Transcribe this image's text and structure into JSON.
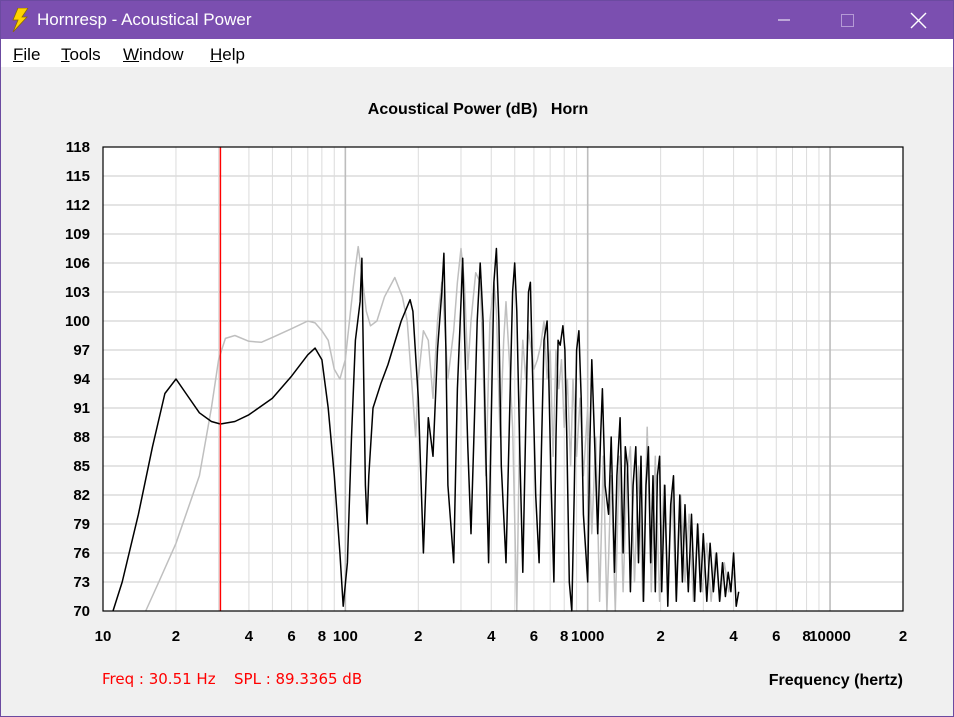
{
  "window": {
    "title": "Hornresp - Acoustical Power",
    "icon": "lightning-bolt-icon",
    "controls": [
      "minimize-icon",
      "maximize-icon",
      "close-icon"
    ]
  },
  "menu": {
    "items": [
      {
        "label": "File",
        "accel": "F",
        "rest": "ile"
      },
      {
        "label": "Tools",
        "accel": "T",
        "rest": "ools"
      },
      {
        "label": "Window",
        "accel": "W",
        "rest": "indow"
      },
      {
        "label": "Help",
        "accel": "H",
        "rest": "elp"
      }
    ]
  },
  "readout": {
    "freq": "Freq : 30.51 Hz",
    "spl": "SPL : 89.3365 dB",
    "color": "#ff0000"
  },
  "chart_data": {
    "type": "line",
    "title": "Acoustical Power (dB)   Horn",
    "xlabel": "Frequency (hertz)",
    "ylabel": "",
    "x_scale": "log",
    "xlim": [
      10,
      20000
    ],
    "ylim": [
      70,
      118
    ],
    "yticks": [
      "118",
      "115",
      "112",
      "109",
      "106",
      "103",
      "100",
      "97",
      "94",
      "91",
      "88",
      "85",
      "82",
      "79",
      "76",
      "73",
      "70"
    ],
    "xticks": [
      {
        "value": 10,
        "label": "10"
      },
      {
        "value": 20,
        "label": "2"
      },
      {
        "value": 40,
        "label": "4"
      },
      {
        "value": 60,
        "label": "6"
      },
      {
        "value": 80,
        "label": "8"
      },
      {
        "value": 100,
        "label": "100"
      },
      {
        "value": 200,
        "label": "2"
      },
      {
        "value": 400,
        "label": "4"
      },
      {
        "value": 600,
        "label": "6"
      },
      {
        "value": 800,
        "label": "8"
      },
      {
        "value": 1000,
        "label": "1000"
      },
      {
        "value": 2000,
        "label": "2"
      },
      {
        "value": 4000,
        "label": "4"
      },
      {
        "value": 6000,
        "label": "6"
      },
      {
        "value": 8000,
        "label": "8"
      },
      {
        "value": 10000,
        "label": "10000"
      },
      {
        "value": 20000,
        "label": "2"
      }
    ],
    "grid": true,
    "marker": {
      "freq": 30.51,
      "spl": 89.3365,
      "color": "#ff0000"
    },
    "series": [
      {
        "color": "#000000",
        "points": [
          [
            11,
            70
          ],
          [
            12,
            73
          ],
          [
            14,
            80
          ],
          [
            16,
            87
          ],
          [
            18,
            92.5
          ],
          [
            20,
            94
          ],
          [
            22,
            92.5
          ],
          [
            25,
            90.5
          ],
          [
            28,
            89.6
          ],
          [
            30.51,
            89.34
          ],
          [
            35,
            89.6
          ],
          [
            40,
            90.3
          ],
          [
            50,
            92
          ],
          [
            60,
            94.3
          ],
          [
            70,
            96.5
          ],
          [
            75,
            97.2
          ],
          [
            80,
            96
          ],
          [
            85,
            91
          ],
          [
            90,
            84
          ],
          [
            95,
            76
          ],
          [
            98,
            70.5
          ],
          [
            102,
            75
          ],
          [
            106,
            88
          ],
          [
            110,
            98
          ],
          [
            115,
            102
          ],
          [
            117,
            106.5
          ],
          [
            118,
            100
          ],
          [
            121,
            83
          ],
          [
            123,
            79
          ],
          [
            125,
            84
          ],
          [
            130,
            91
          ],
          [
            140,
            93.5
          ],
          [
            150,
            95.5
          ],
          [
            170,
            100
          ],
          [
            185,
            102.2
          ],
          [
            190,
            101
          ],
          [
            200,
            92
          ],
          [
            210,
            76
          ],
          [
            220,
            90
          ],
          [
            230,
            86
          ],
          [
            240,
            97
          ],
          [
            250,
            103
          ],
          [
            255,
            107
          ],
          [
            260,
            97
          ],
          [
            265,
            83
          ],
          [
            280,
            75
          ],
          [
            290,
            93
          ],
          [
            300,
            102
          ],
          [
            305,
            106.5
          ],
          [
            310,
            99
          ],
          [
            320,
            87
          ],
          [
            330,
            78
          ],
          [
            340,
            89
          ],
          [
            350,
            100
          ],
          [
            360,
            106
          ],
          [
            370,
            100
          ],
          [
            380,
            86
          ],
          [
            390,
            75
          ],
          [
            400,
            90
          ],
          [
            410,
            104
          ],
          [
            420,
            107.5
          ],
          [
            430,
            100
          ],
          [
            440,
            85
          ],
          [
            460,
            75
          ],
          [
            475,
            89
          ],
          [
            490,
            103
          ],
          [
            500,
            106
          ],
          [
            510,
            101
          ],
          [
            525,
            86
          ],
          [
            540,
            74
          ],
          [
            555,
            89
          ],
          [
            570,
            103
          ],
          [
            580,
            104
          ],
          [
            590,
            96
          ],
          [
            610,
            82
          ],
          [
            630,
            75
          ],
          [
            645,
            87
          ],
          [
            660,
            98
          ],
          [
            680,
            100
          ],
          [
            690,
            95
          ],
          [
            705,
            84
          ],
          [
            725,
            73
          ],
          [
            740,
            88
          ],
          [
            755,
            98
          ],
          [
            770,
            97.5
          ],
          [
            790,
            99.5
          ],
          [
            805,
            97
          ],
          [
            820,
            88
          ],
          [
            840,
            73
          ],
          [
            860,
            70
          ],
          [
            880,
            82
          ],
          [
            900,
            97
          ],
          [
            920,
            99
          ],
          [
            940,
            92
          ],
          [
            960,
            80
          ],
          [
            1000,
            73
          ],
          [
            1020,
            87
          ],
          [
            1040,
            96
          ],
          [
            1060,
            90
          ],
          [
            1100,
            78
          ],
          [
            1130,
            88
          ],
          [
            1150,
            93
          ],
          [
            1180,
            83
          ],
          [
            1220,
            80
          ],
          [
            1250,
            88
          ],
          [
            1290,
            74
          ],
          [
            1320,
            84
          ],
          [
            1360,
            90
          ],
          [
            1400,
            76
          ],
          [
            1430,
            87
          ],
          [
            1460,
            85
          ],
          [
            1500,
            72
          ],
          [
            1540,
            83
          ],
          [
            1580,
            87
          ],
          [
            1620,
            75
          ],
          [
            1660,
            86
          ],
          [
            1700,
            71
          ],
          [
            1740,
            83
          ],
          [
            1780,
            87
          ],
          [
            1820,
            75
          ],
          [
            1860,
            84
          ],
          [
            1900,
            72
          ],
          [
            1940,
            84
          ],
          [
            1980,
            86
          ],
          [
            2020,
            72
          ],
          [
            2080,
            83
          ],
          [
            2140,
            70.5
          ],
          [
            2200,
            81
          ],
          [
            2260,
            84
          ],
          [
            2320,
            71
          ],
          [
            2400,
            82
          ],
          [
            2460,
            73
          ],
          [
            2520,
            81
          ],
          [
            2600,
            72
          ],
          [
            2680,
            80
          ],
          [
            2760,
            71
          ],
          [
            2840,
            79
          ],
          [
            2920,
            72
          ],
          [
            3000,
            78
          ],
          [
            3100,
            71
          ],
          [
            3200,
            77
          ],
          [
            3300,
            72
          ],
          [
            3400,
            76
          ],
          [
            3500,
            71
          ],
          [
            3600,
            75
          ],
          [
            3700,
            71.5
          ],
          [
            3800,
            74
          ],
          [
            3900,
            72
          ],
          [
            4000,
            76
          ],
          [
            4100,
            70.5
          ],
          [
            4200,
            72
          ]
        ]
      },
      {
        "color": "#bfbfbf",
        "points": [
          [
            15,
            70
          ],
          [
            17,
            73
          ],
          [
            20,
            77
          ],
          [
            25,
            84
          ],
          [
            28,
            91
          ],
          [
            30,
            96
          ],
          [
            32,
            98.2
          ],
          [
            35,
            98.5
          ],
          [
            40,
            97.9
          ],
          [
            45,
            97.8
          ],
          [
            50,
            98.3
          ],
          [
            60,
            99.2
          ],
          [
            70,
            100
          ],
          [
            75,
            99.8
          ],
          [
            80,
            99
          ],
          [
            85,
            98
          ],
          [
            90,
            95
          ],
          [
            95,
            94
          ],
          [
            100,
            96
          ],
          [
            105,
            101
          ],
          [
            110,
            105.5
          ],
          [
            113,
            107.7
          ],
          [
            118,
            104
          ],
          [
            122,
            101
          ],
          [
            127,
            99.5
          ],
          [
            135,
            100
          ],
          [
            145,
            102.5
          ],
          [
            160,
            104.5
          ],
          [
            172,
            102.5
          ],
          [
            180,
            100
          ],
          [
            190,
            92
          ],
          [
            195,
            88
          ],
          [
            200,
            94
          ],
          [
            210,
            99
          ],
          [
            220,
            98
          ],
          [
            230,
            92
          ],
          [
            240,
            100
          ],
          [
            250,
            104
          ],
          [
            255,
            101
          ],
          [
            265,
            94
          ],
          [
            280,
            99
          ],
          [
            290,
            104
          ],
          [
            300,
            107.5
          ],
          [
            310,
            104
          ],
          [
            320,
            95
          ],
          [
            330,
            100
          ],
          [
            345,
            105
          ],
          [
            360,
            104
          ],
          [
            370,
            96
          ],
          [
            380,
            84
          ],
          [
            395,
            100
          ],
          [
            410,
            104
          ],
          [
            420,
            101
          ],
          [
            435,
            88
          ],
          [
            450,
            98
          ],
          [
            460,
            102
          ],
          [
            475,
            96
          ],
          [
            490,
            89
          ],
          [
            510,
            70
          ],
          [
            525,
            91
          ],
          [
            540,
            98
          ],
          [
            555,
            94
          ],
          [
            570,
            99
          ],
          [
            585,
            97
          ],
          [
            600,
            95
          ],
          [
            620,
            96
          ],
          [
            640,
            97.5
          ],
          [
            660,
            100
          ],
          [
            680,
            94
          ],
          [
            700,
            97
          ],
          [
            720,
            86
          ],
          [
            740,
            97
          ],
          [
            760,
            93
          ],
          [
            780,
            96
          ],
          [
            800,
            89
          ],
          [
            825,
            94
          ],
          [
            850,
            85
          ],
          [
            870,
            94
          ],
          [
            900,
            86
          ],
          [
            930,
            92
          ],
          [
            960,
            84
          ],
          [
            1000,
            91
          ],
          [
            1040,
            78
          ],
          [
            1080,
            88
          ],
          [
            1120,
            71
          ],
          [
            1160,
            86
          ],
          [
            1200,
            70
          ],
          [
            1250,
            84
          ],
          [
            1300,
            70
          ],
          [
            1350,
            86
          ],
          [
            1400,
            72
          ],
          [
            1450,
            84
          ],
          [
            1500,
            87
          ],
          [
            1560,
            73
          ],
          [
            1620,
            85
          ],
          [
            1690,
            71
          ],
          [
            1760,
            89
          ],
          [
            1830,
            72
          ],
          [
            1900,
            86
          ],
          [
            1980,
            71
          ],
          [
            2060,
            83
          ],
          [
            2140,
            73
          ],
          [
            2230,
            82
          ],
          [
            2320,
            71
          ],
          [
            2420,
            82
          ],
          [
            2520,
            73
          ],
          [
            2620,
            80
          ],
          [
            2730,
            71
          ],
          [
            2850,
            79
          ],
          [
            2970,
            72
          ],
          [
            3100,
            77
          ],
          [
            3230,
            71
          ],
          [
            3370,
            76
          ],
          [
            3510,
            71
          ],
          [
            3660,
            75
          ],
          [
            3820,
            72
          ],
          [
            4000,
            74
          ]
        ]
      }
    ]
  }
}
